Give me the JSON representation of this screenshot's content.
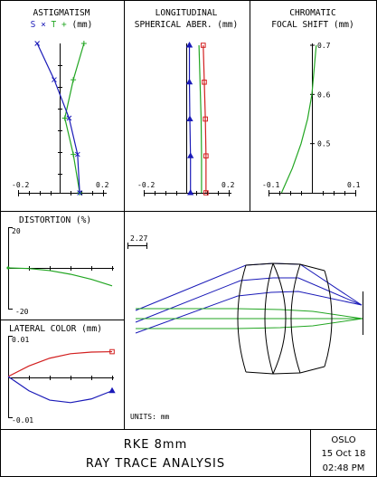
{
  "colors": {
    "sagittal": "#1a1ab8",
    "tangential": "#22a622",
    "wavelength_1": "#1a1ab8",
    "wavelength_2": "#22a622",
    "wavelength_3": "#d21f1f",
    "frame": "#000000"
  },
  "astigmatism": {
    "title_line1": "ASTIGMATISM",
    "title_s": "S",
    "title_x": "×",
    "title_t": "T",
    "title_plus": "+",
    "title_unit": "(mm)",
    "tick_left": "-0.2",
    "tick_right": "0.2",
    "xlim": [
      -0.2,
      0.2
    ],
    "ylim": [
      0,
      0.7
    ],
    "sagittal_points": [
      [
        -0.11,
        0.7
      ],
      [
        -0.03,
        0.53
      ],
      [
        0.04,
        0.35
      ],
      [
        0.08,
        0.18
      ],
      [
        0.09,
        0.0
      ]
    ],
    "tangential_points": [
      [
        0.11,
        0.7
      ],
      [
        0.06,
        0.53
      ],
      [
        0.02,
        0.35
      ],
      [
        0.06,
        0.18
      ],
      [
        0.09,
        0.0
      ]
    ]
  },
  "spherical": {
    "title_line1": "LONGITUDINAL",
    "title_line2": "SPHERICAL ABER. (mm)",
    "tick_left": "-0.2",
    "tick_right": "0.2",
    "xlim": [
      -0.2,
      0.2
    ],
    "ylim": [
      0,
      1.0
    ],
    "series": [
      {
        "name": "",
        "color_key": "wavelength_1",
        "marker": "triangle",
        "points": [
          [
            0.015,
            1.0
          ],
          [
            0.015,
            0.75
          ],
          [
            0.017,
            0.5
          ],
          [
            0.02,
            0.25
          ],
          [
            0.02,
            0.0
          ]
        ]
      },
      {
        "name": "",
        "color_key": "wavelength_2",
        "marker": "none",
        "points": [
          [
            0.06,
            1.0
          ],
          [
            0.065,
            0.75
          ],
          [
            0.07,
            0.5
          ],
          [
            0.072,
            0.25
          ],
          [
            0.072,
            0.0
          ]
        ]
      },
      {
        "name": "",
        "color_key": "wavelength_3",
        "marker": "square",
        "points": [
          [
            0.08,
            1.0
          ],
          [
            0.085,
            0.75
          ],
          [
            0.09,
            0.5
          ],
          [
            0.093,
            0.25
          ],
          [
            0.093,
            0.0
          ]
        ]
      }
    ]
  },
  "chromatic": {
    "title_line1": "CHROMATIC",
    "title_line2": "FOCAL SHIFT (mm)",
    "tick_left": "-0.1",
    "tick_right": "0.1",
    "wl_labels": [
      "0.7",
      "0.6",
      "0.5"
    ],
    "wl_values": [
      0.7,
      0.6,
      0.5
    ],
    "xlim": [
      -0.1,
      0.1
    ],
    "ylim": [
      0.4,
      0.7
    ],
    "points": [
      [
        0.01,
        0.7
      ],
      [
        0.005,
        0.65
      ],
      [
        0.0,
        0.6
      ],
      [
        -0.01,
        0.55
      ],
      [
        -0.025,
        0.5
      ],
      [
        -0.045,
        0.45
      ],
      [
        -0.07,
        0.4
      ]
    ]
  },
  "distortion": {
    "title": "DISTORTION (%)",
    "tick_top": "20",
    "tick_bottom": "-20",
    "ylim": [
      -20,
      20
    ],
    "xlim": [
      0,
      1
    ],
    "points": [
      [
        0,
        0
      ],
      [
        0.2,
        -0.3
      ],
      [
        0.4,
        -1.3
      ],
      [
        0.6,
        -3.1
      ],
      [
        0.8,
        -5.6
      ],
      [
        1.0,
        -8.8
      ]
    ]
  },
  "lateral": {
    "title": "LATERAL COLOR (mm)",
    "tick_top": "0.01",
    "tick_bottom": "-0.01",
    "ylim": [
      -0.01,
      0.01
    ],
    "xlim": [
      0,
      1
    ],
    "red_points": [
      [
        0,
        0
      ],
      [
        0.2,
        0.0026
      ],
      [
        0.4,
        0.0045
      ],
      [
        0.6,
        0.0056
      ],
      [
        0.8,
        0.006
      ],
      [
        1.0,
        0.0061
      ]
    ],
    "blue_points": [
      [
        0,
        0
      ],
      [
        0.2,
        -0.0035
      ],
      [
        0.4,
        -0.0058
      ],
      [
        0.6,
        -0.0064
      ],
      [
        0.8,
        -0.0055
      ],
      [
        1.0,
        -0.0035
      ]
    ]
  },
  "layout": {
    "scale_label": "2.27",
    "units_label": "UNITS: mm"
  },
  "footer": {
    "lens_name": "RKE 8mm",
    "analysis_title": "RAY TRACE ANALYSIS",
    "program": "OSLO",
    "date": "15 Oct 18",
    "time": "02:48 PM"
  }
}
